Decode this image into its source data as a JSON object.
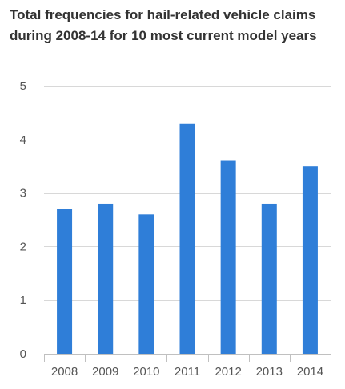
{
  "chart_data": {
    "type": "bar",
    "title_lines": [
      "Total frequencies for hail-related vehicle claims",
      "during 2008-14 for 10 most current model years"
    ],
    "categories": [
      "2008",
      "2009",
      "2010",
      "2011",
      "2012",
      "2013",
      "2014"
    ],
    "values": [
      2.7,
      2.8,
      2.6,
      4.3,
      3.6,
      2.8,
      3.5
    ],
    "ylim": [
      0,
      5
    ],
    "yticks": [
      0,
      1,
      2,
      3,
      4,
      5
    ],
    "xlabel": "",
    "ylabel": "",
    "grid": true,
    "bar_color": "#2f7ed8",
    "grid_color": "#d8d8d8"
  }
}
